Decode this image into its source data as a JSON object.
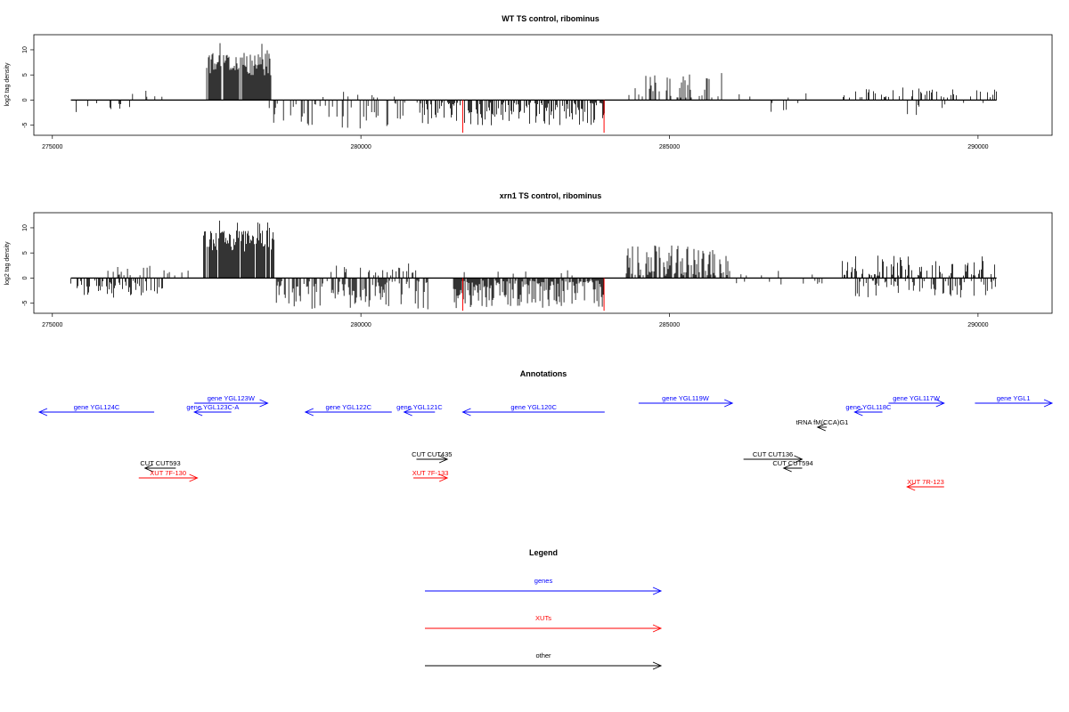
{
  "colors": {
    "gene": "#0000ff",
    "xut": "#ff0000",
    "other": "#000000",
    "signal": "#000000",
    "mark": "#ff0000"
  },
  "chart_data": [
    {
      "type": "bar",
      "title": "WT TS control, ribominus",
      "ylabel": "log2 tag density",
      "xlim": [
        274700,
        291200
      ],
      "ylim": [
        -7,
        13
      ],
      "xticks": [
        "275000",
        "280000",
        "285000",
        "290000"
      ],
      "yticks": [
        "-5",
        "0",
        "5",
        "10"
      ],
      "segments": [
        {
          "from": 275300,
          "to": 276400,
          "sign": "neg",
          "dens": 0.55,
          "min": 0.5,
          "max": 2.8
        },
        {
          "from": 276300,
          "to": 277000,
          "sign": "pos",
          "dens": 0.3,
          "min": 0.5,
          "max": 2
        },
        {
          "from": 277500,
          "to": 278550,
          "sign": "pos",
          "dens": 3,
          "min": 2.5,
          "max": 11.7
        },
        {
          "from": 278500,
          "to": 281000,
          "sign": "neg",
          "dens": 0.9,
          "min": 0.5,
          "max": 5.8
        },
        {
          "from": 279300,
          "to": 280900,
          "sign": "pos",
          "dens": 0.12,
          "min": 0.5,
          "max": 1.8
        },
        {
          "from": 281000,
          "to": 283950,
          "sign": "neg",
          "dens": 1.8,
          "min": 0.5,
          "max": 5.2
        },
        {
          "from": 284300,
          "to": 286000,
          "sign": "pos",
          "dens": 0.8,
          "min": 0.5,
          "max": 5.5
        },
        {
          "from": 286100,
          "to": 287300,
          "sign": "neg",
          "dens": 0.22,
          "min": 0.5,
          "max": 3
        },
        {
          "from": 286000,
          "to": 287500,
          "sign": "pos",
          "dens": 0.12,
          "min": 0.5,
          "max": 1.8
        },
        {
          "from": 287800,
          "to": 290300,
          "sign": "pos",
          "dens": 0.55,
          "min": 0.5,
          "max": 2.5
        },
        {
          "from": 288800,
          "to": 290200,
          "sign": "neg",
          "dens": 0.2,
          "min": 0.5,
          "max": 3
        }
      ],
      "marks": [
        {
          "x": 281650,
          "y": -6.5
        },
        {
          "x": 283940,
          "y": -6.5
        }
      ]
    },
    {
      "type": "bar",
      "title": "xrn1 TS control, ribominus",
      "ylabel": "log2 tag density",
      "xlim": [
        274700,
        291200
      ],
      "ylim": [
        -7,
        13
      ],
      "xticks": [
        "275000",
        "280000",
        "285000",
        "290000"
      ],
      "yticks": [
        "-5",
        "0",
        "5",
        "10"
      ],
      "segments": [
        {
          "from": 275300,
          "to": 276800,
          "sign": "neg",
          "dens": 1.4,
          "min": 0.5,
          "max": 4
        },
        {
          "from": 275900,
          "to": 277300,
          "sign": "pos",
          "dens": 0.45,
          "min": 0.5,
          "max": 2.5
        },
        {
          "from": 277450,
          "to": 278600,
          "sign": "pos",
          "dens": 3,
          "min": 3,
          "max": 11.7
        },
        {
          "from": 278600,
          "to": 281100,
          "sign": "neg",
          "dens": 1.8,
          "min": 0.5,
          "max": 6.3
        },
        {
          "from": 279300,
          "to": 281100,
          "sign": "pos",
          "dens": 0.6,
          "min": 0.5,
          "max": 3
        },
        {
          "from": 281500,
          "to": 283950,
          "sign": "neg",
          "dens": 2.5,
          "min": 0.5,
          "max": 6
        },
        {
          "from": 281500,
          "to": 283950,
          "sign": "pos",
          "dens": 0.15,
          "min": 0.5,
          "max": 2
        },
        {
          "from": 284300,
          "to": 286000,
          "sign": "pos",
          "dens": 2,
          "min": 0.5,
          "max": 6.5
        },
        {
          "from": 286000,
          "to": 287600,
          "sign": "neg",
          "dens": 0.3,
          "min": 0.5,
          "max": 2
        },
        {
          "from": 286000,
          "to": 287500,
          "sign": "pos",
          "dens": 0.15,
          "min": 0.5,
          "max": 1.5
        },
        {
          "from": 287800,
          "to": 290300,
          "sign": "pos",
          "dens": 1.1,
          "min": 0.5,
          "max": 4.5
        },
        {
          "from": 288000,
          "to": 290300,
          "sign": "neg",
          "dens": 0.9,
          "min": 0.5,
          "max": 4
        }
      ],
      "marks": [
        {
          "x": 281650,
          "y": -6.5
        },
        {
          "x": 283940,
          "y": -6.5
        }
      ]
    }
  ],
  "annotations": {
    "title": "Annotations",
    "features": [
      {
        "label": "gene YGL124C",
        "kind": "gene",
        "start": 274700,
        "end": 276650,
        "strand": "-",
        "lane": 1
      },
      {
        "label": "gene YGL123W",
        "kind": "gene",
        "start": 277300,
        "end": 278490,
        "strand": "+",
        "lane": 0
      },
      {
        "label": "gene YGL123C-A",
        "kind": "gene",
        "start": 277300,
        "end": 277900,
        "strand": "-",
        "lane": 1
      },
      {
        "label": "gene YGL122C",
        "kind": "gene",
        "start": 279100,
        "end": 280500,
        "strand": "-",
        "lane": 1
      },
      {
        "label": "gene YGL121C",
        "kind": "gene",
        "start": 280700,
        "end": 281200,
        "strand": "-",
        "lane": 1
      },
      {
        "label": "gene YGL120C",
        "kind": "gene",
        "start": 281650,
        "end": 283950,
        "strand": "-",
        "lane": 1
      },
      {
        "label": "gene YGL119W",
        "kind": "gene",
        "start": 284500,
        "end": 286020,
        "strand": "+",
        "lane": 0
      },
      {
        "label": "gene YGL118C",
        "kind": "gene",
        "start": 288000,
        "end": 288450,
        "strand": "-",
        "lane": 1
      },
      {
        "label": "gene YGL117W",
        "kind": "gene",
        "start": 288550,
        "end": 289450,
        "strand": "+",
        "lane": 0
      },
      {
        "label": "gene YGL1",
        "kind": "gene",
        "start": 289950,
        "end": 291200,
        "strand": "+",
        "lane": 0
      },
      {
        "label": "tRNA fM(CCA)G1",
        "kind": "other",
        "start": 287400,
        "end": 287550,
        "strand": "-",
        "lane": 2
      },
      {
        "label": "CUT CUT593",
        "kind": "other",
        "start": 276500,
        "end": 277000,
        "strand": "-",
        "lane": 4
      },
      {
        "label": "XUT 7F-130",
        "kind": "xut",
        "start": 276400,
        "end": 277350,
        "strand": "+",
        "lane": 5
      },
      {
        "label": "CUT CUT435",
        "kind": "other",
        "start": 280900,
        "end": 281400,
        "strand": "+",
        "lane": 3
      },
      {
        "label": "XUT 7F-133",
        "kind": "xut",
        "start": 280850,
        "end": 281400,
        "strand": "+",
        "lane": 5
      },
      {
        "label": "CUT CUT136",
        "kind": "other",
        "start": 286200,
        "end": 287150,
        "strand": "+",
        "lane": 3
      },
      {
        "label": "CUT CUT594",
        "kind": "other",
        "start": 286850,
        "end": 287150,
        "strand": "-",
        "lane": 4
      },
      {
        "label": "XUT 7R-123",
        "kind": "xut",
        "start": 288850,
        "end": 289450,
        "strand": "-",
        "lane": 6
      }
    ]
  },
  "legend": {
    "title": "Legend",
    "items": [
      {
        "label": "genes",
        "kind": "gene"
      },
      {
        "label": "XUTs",
        "kind": "xut"
      },
      {
        "label": "other",
        "kind": "other"
      }
    ]
  }
}
